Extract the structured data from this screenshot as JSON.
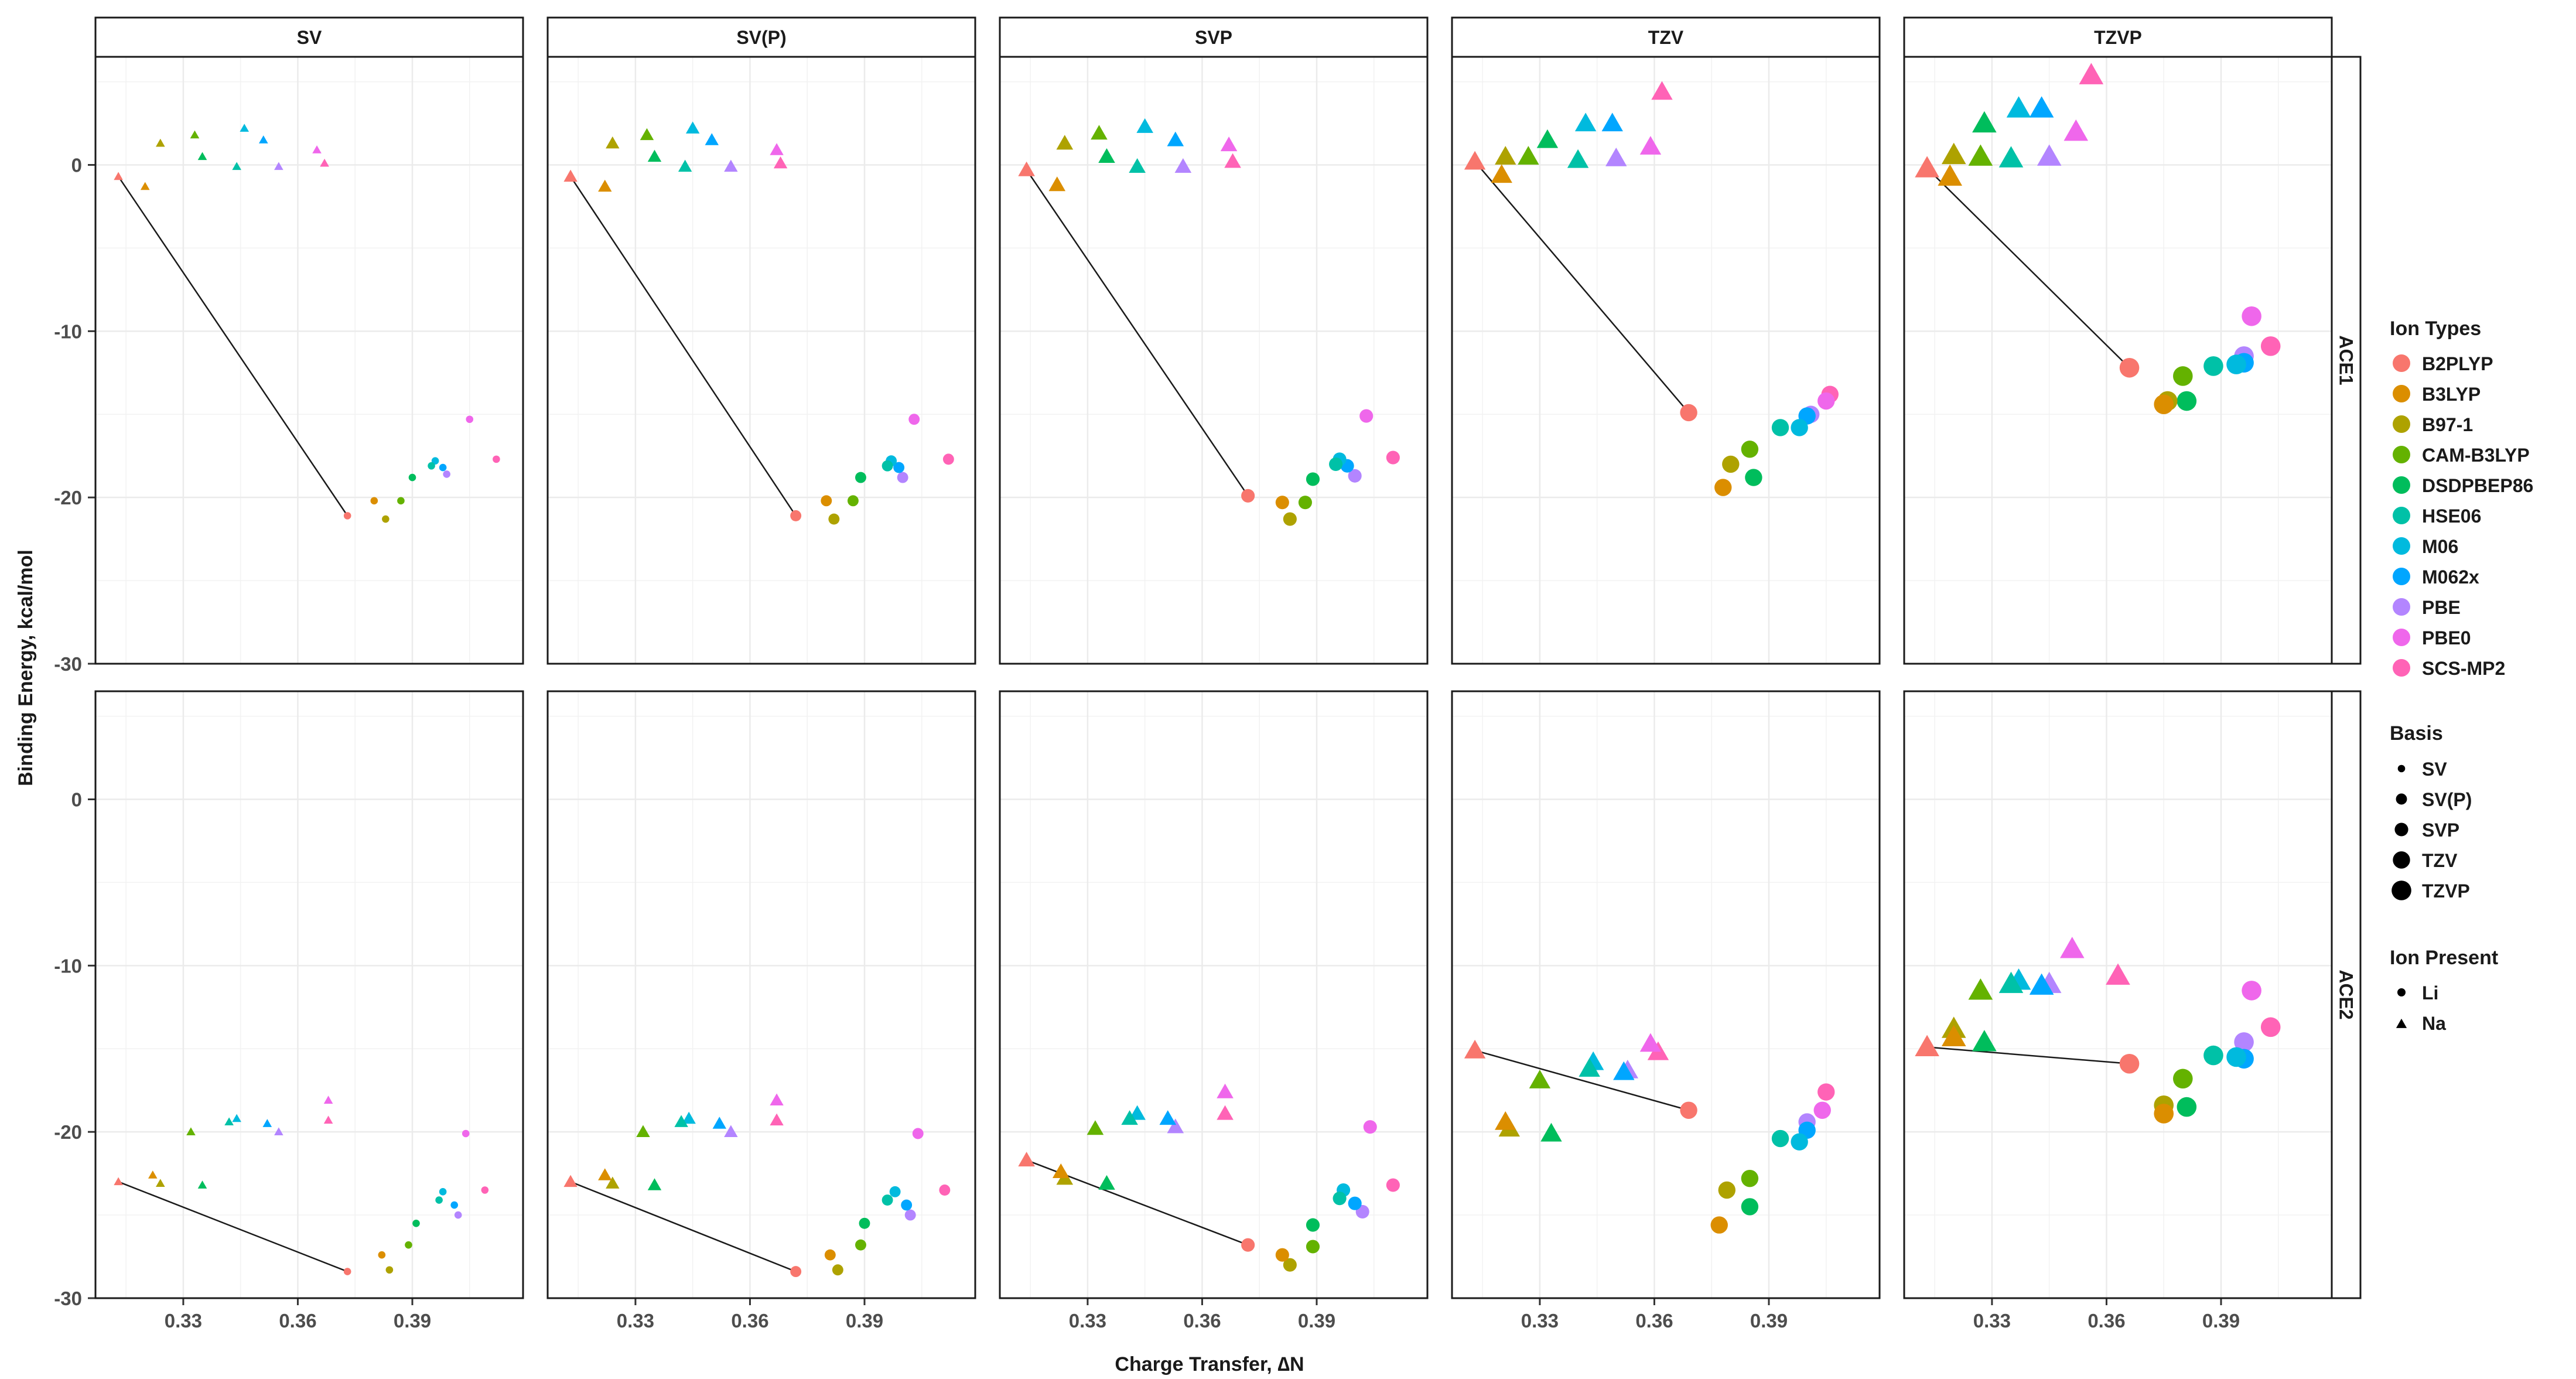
{
  "chart_data": {
    "type": "scatter",
    "title": "",
    "xlabel": "Charge Transfer, ∆N",
    "ylabel": "Binding Energy, kcal/mol",
    "xlim": [
      0.307,
      0.419
    ],
    "ylim": [
      -30,
      6.5
    ],
    "x_ticks": [
      0.33,
      0.36,
      0.39
    ],
    "x_tick_labels": [
      "0.33",
      "0.36",
      "0.39"
    ],
    "y_ticks": [
      -30,
      -20,
      -10,
      0
    ],
    "y_tick_labels": [
      "-30",
      "-20",
      "-10",
      "0"
    ],
    "grid": true,
    "facet_columns": [
      "SV",
      "SV(P)",
      "SVP",
      "TZV",
      "TZVP"
    ],
    "facet_rows": [
      "ACE1",
      "ACE2"
    ],
    "legend_position": "right",
    "legends": {
      "color": {
        "title": "Ion Types",
        "items": [
          "B2PLYP",
          "B3LYP",
          "B97-1",
          "CAM-B3LYP",
          "DSDPBEP86",
          "HSE06",
          "M06",
          "M062x",
          "PBE",
          "PBE0",
          "SCS-MP2"
        ],
        "colors": [
          "#F8766D",
          "#DB8E00",
          "#AEA200",
          "#64B200",
          "#00BD5C",
          "#00C1A7",
          "#00BADE",
          "#00A6FF",
          "#B385FF",
          "#EF67EB",
          "#FF63B6"
        ]
      },
      "size": {
        "title": "Basis",
        "items": [
          "SV",
          "SV(P)",
          "SVP",
          "TZV",
          "TZVP"
        ]
      },
      "shape": {
        "title": "Ion Present",
        "items": [
          "Li",
          "Na"
        ]
      }
    },
    "panels": [
      {
        "col": "SV",
        "row": "ACE1",
        "Li": [
          [
            0.373,
            -21.1
          ],
          [
            0.38,
            -20.2
          ],
          [
            0.383,
            -21.3
          ],
          [
            0.387,
            -20.2
          ],
          [
            0.39,
            -18.8
          ],
          [
            0.395,
            -18.1
          ],
          [
            0.396,
            -17.8
          ],
          [
            0.398,
            -18.2
          ],
          [
            0.399,
            -18.6
          ],
          [
            0.405,
            -15.3
          ],
          [
            0.412,
            -17.7
          ]
        ],
        "Na": [
          [
            0.313,
            -0.7
          ],
          [
            0.32,
            -1.3
          ],
          [
            0.324,
            1.3
          ],
          [
            0.333,
            1.8
          ],
          [
            0.335,
            0.5
          ],
          [
            0.344,
            -0.1
          ],
          [
            0.346,
            2.2
          ],
          [
            0.351,
            1.5
          ],
          [
            0.355,
            -0.1
          ],
          [
            0.365,
            0.9
          ],
          [
            0.367,
            0.1
          ]
        ],
        "line": [
          [
            0.313,
            -0.7
          ],
          [
            0.373,
            -21.1
          ]
        ]
      },
      {
        "col": "SV(P)",
        "row": "ACE1",
        "Li": [
          [
            0.372,
            -21.1
          ],
          [
            0.38,
            -20.2
          ],
          [
            0.382,
            -21.3
          ],
          [
            0.387,
            -20.2
          ],
          [
            0.389,
            -18.8
          ],
          [
            0.396,
            -18.1
          ],
          [
            0.397,
            -17.8
          ],
          [
            0.399,
            -18.2
          ],
          [
            0.4,
            -18.8
          ],
          [
            0.403,
            -15.3
          ],
          [
            0.412,
            -17.7
          ]
        ],
        "Na": [
          [
            0.313,
            -0.7
          ],
          [
            0.322,
            -1.3
          ],
          [
            0.324,
            1.3
          ],
          [
            0.333,
            1.8
          ],
          [
            0.335,
            0.5
          ],
          [
            0.343,
            -0.1
          ],
          [
            0.345,
            2.2
          ],
          [
            0.35,
            1.5
          ],
          [
            0.355,
            -0.1
          ],
          [
            0.367,
            0.9
          ],
          [
            0.368,
            0.1
          ]
        ],
        "line": [
          [
            0.313,
            -0.7
          ],
          [
            0.372,
            -21.1
          ]
        ]
      },
      {
        "col": "SVP",
        "row": "ACE1",
        "Li": [
          [
            0.372,
            -19.9
          ],
          [
            0.381,
            -20.3
          ],
          [
            0.383,
            -21.3
          ],
          [
            0.387,
            -20.3
          ],
          [
            0.389,
            -18.9
          ],
          [
            0.395,
            -18.0
          ],
          [
            0.396,
            -17.7
          ],
          [
            0.398,
            -18.1
          ],
          [
            0.4,
            -18.7
          ],
          [
            0.403,
            -15.1
          ],
          [
            0.41,
            -17.6
          ]
        ],
        "Na": [
          [
            0.314,
            -0.3
          ],
          [
            0.322,
            -1.2
          ],
          [
            0.324,
            1.3
          ],
          [
            0.333,
            1.9
          ],
          [
            0.335,
            0.5
          ],
          [
            0.343,
            -0.1
          ],
          [
            0.345,
            2.3
          ],
          [
            0.353,
            1.5
          ],
          [
            0.355,
            -0.1
          ],
          [
            0.367,
            1.2
          ],
          [
            0.368,
            0.2
          ]
        ],
        "line": [
          [
            0.314,
            -0.3
          ],
          [
            0.372,
            -19.9
          ]
        ]
      },
      {
        "col": "TZV",
        "row": "ACE1",
        "Li": [
          [
            0.369,
            -14.9
          ],
          [
            0.378,
            -19.4
          ],
          [
            0.38,
            -18.0
          ],
          [
            0.385,
            -17.1
          ],
          [
            0.386,
            -18.8
          ],
          [
            0.393,
            -15.8
          ],
          [
            0.398,
            -15.8
          ],
          [
            0.4,
            -15.1
          ],
          [
            0.401,
            -15.0
          ],
          [
            0.405,
            -14.2
          ],
          [
            0.406,
            -13.8
          ]
        ],
        "Na": [
          [
            0.313,
            0.2
          ],
          [
            0.32,
            -0.6
          ],
          [
            0.321,
            0.5
          ],
          [
            0.327,
            0.5
          ],
          [
            0.332,
            1.5
          ],
          [
            0.34,
            0.3
          ],
          [
            0.342,
            2.5
          ],
          [
            0.349,
            2.5
          ],
          [
            0.35,
            0.4
          ],
          [
            0.359,
            1.1
          ],
          [
            0.362,
            4.4
          ]
        ],
        "line": [
          [
            0.313,
            0.2
          ],
          [
            0.369,
            -14.9
          ]
        ]
      },
      {
        "col": "TZVP",
        "row": "ACE1",
        "Li": [
          [
            0.366,
            -12.2
          ],
          [
            0.375,
            -14.4
          ],
          [
            0.376,
            -14.2
          ],
          [
            0.38,
            -12.7
          ],
          [
            0.381,
            -14.2
          ],
          [
            0.388,
            -12.1
          ],
          [
            0.394,
            -12.0
          ],
          [
            0.396,
            -11.9
          ],
          [
            0.396,
            -11.5
          ],
          [
            0.398,
            -9.1
          ],
          [
            0.403,
            -10.9
          ]
        ],
        "Na": [
          [
            0.313,
            -0.2
          ],
          [
            0.319,
            -0.7
          ],
          [
            0.32,
            0.6
          ],
          [
            0.327,
            0.5
          ],
          [
            0.328,
            2.5
          ],
          [
            0.335,
            0.4
          ],
          [
            0.337,
            3.4
          ],
          [
            0.343,
            3.4
          ],
          [
            0.345,
            0.5
          ],
          [
            0.352,
            2.0
          ],
          [
            0.356,
            5.4
          ]
        ],
        "line": [
          [
            0.313,
            -0.2
          ],
          [
            0.366,
            -12.2
          ]
        ]
      },
      {
        "col": "SV",
        "row": "ACE2",
        "Li": [
          [
            0.373,
            -28.4
          ],
          [
            0.382,
            -27.4
          ],
          [
            0.384,
            -28.3
          ],
          [
            0.389,
            -26.8
          ],
          [
            0.391,
            -25.5
          ],
          [
            0.397,
            -24.1
          ],
          [
            0.398,
            -23.6
          ],
          [
            0.401,
            -24.4
          ],
          [
            0.402,
            -25.0
          ],
          [
            0.404,
            -20.1
          ],
          [
            0.409,
            -23.5
          ]
        ],
        "Na": [
          [
            0.313,
            -23.0
          ],
          [
            0.322,
            -22.6
          ],
          [
            0.324,
            -23.1
          ],
          [
            0.332,
            -20.0
          ],
          [
            0.335,
            -23.2
          ],
          [
            0.342,
            -19.4
          ],
          [
            0.344,
            -19.2
          ],
          [
            0.352,
            -19.5
          ],
          [
            0.355,
            -20.0
          ],
          [
            0.368,
            -18.1
          ],
          [
            0.368,
            -19.3
          ]
        ],
        "line": [
          [
            0.313,
            -23.0
          ],
          [
            0.373,
            -28.4
          ]
        ]
      },
      {
        "col": "SV(P)",
        "row": "ACE2",
        "Li": [
          [
            0.372,
            -28.4
          ],
          [
            0.381,
            -27.4
          ],
          [
            0.383,
            -28.3
          ],
          [
            0.389,
            -26.8
          ],
          [
            0.39,
            -25.5
          ],
          [
            0.396,
            -24.1
          ],
          [
            0.398,
            -23.6
          ],
          [
            0.401,
            -24.4
          ],
          [
            0.402,
            -25.0
          ],
          [
            0.404,
            -20.1
          ],
          [
            0.411,
            -23.5
          ]
        ],
        "Na": [
          [
            0.313,
            -23.0
          ],
          [
            0.322,
            -22.6
          ],
          [
            0.324,
            -23.1
          ],
          [
            0.332,
            -20.0
          ],
          [
            0.335,
            -23.2
          ],
          [
            0.342,
            -19.4
          ],
          [
            0.344,
            -19.2
          ],
          [
            0.352,
            -19.5
          ],
          [
            0.355,
            -20.0
          ],
          [
            0.367,
            -18.1
          ],
          [
            0.367,
            -19.3
          ]
        ],
        "line": [
          [
            0.313,
            -23.0
          ],
          [
            0.372,
            -28.4
          ]
        ]
      },
      {
        "col": "SVP",
        "row": "ACE2",
        "Li": [
          [
            0.372,
            -26.8
          ],
          [
            0.381,
            -27.4
          ],
          [
            0.383,
            -28.0
          ],
          [
            0.389,
            -26.9
          ],
          [
            0.389,
            -25.6
          ],
          [
            0.396,
            -24.0
          ],
          [
            0.397,
            -23.5
          ],
          [
            0.4,
            -24.3
          ],
          [
            0.402,
            -24.8
          ],
          [
            0.404,
            -19.7
          ],
          [
            0.41,
            -23.2
          ]
        ],
        "Na": [
          [
            0.314,
            -21.7
          ],
          [
            0.323,
            -22.4
          ],
          [
            0.324,
            -22.8
          ],
          [
            0.332,
            -19.8
          ],
          [
            0.335,
            -23.1
          ],
          [
            0.341,
            -19.2
          ],
          [
            0.343,
            -18.9
          ],
          [
            0.351,
            -19.2
          ],
          [
            0.353,
            -19.7
          ],
          [
            0.366,
            -17.6
          ],
          [
            0.366,
            -18.9
          ]
        ],
        "line": [
          [
            0.314,
            -21.7
          ],
          [
            0.372,
            -26.8
          ]
        ]
      },
      {
        "col": "TZV",
        "row": "ACE2",
        "Li": [
          [
            0.369,
            -18.7
          ],
          [
            0.377,
            -25.6
          ],
          [
            0.379,
            -23.5
          ],
          [
            0.385,
            -22.8
          ],
          [
            0.385,
            -24.5
          ],
          [
            0.393,
            -20.4
          ],
          [
            0.398,
            -20.6
          ],
          [
            0.4,
            -19.9
          ],
          [
            0.4,
            -19.4
          ],
          [
            0.404,
            -18.7
          ],
          [
            0.405,
            -17.6
          ]
        ],
        "Na": [
          [
            0.313,
            -15.1
          ],
          [
            0.321,
            -19.4
          ],
          [
            0.322,
            -19.8
          ],
          [
            0.33,
            -16.9
          ],
          [
            0.333,
            -20.1
          ],
          [
            0.343,
            -16.2
          ],
          [
            0.344,
            -15.8
          ],
          [
            0.352,
            -16.4
          ],
          [
            0.353,
            -16.3
          ],
          [
            0.359,
            -14.7
          ],
          [
            0.361,
            -15.2
          ]
        ],
        "line": [
          [
            0.313,
            -15.1
          ],
          [
            0.369,
            -18.7
          ]
        ]
      },
      {
        "col": "TZVP",
        "row": "ACE2",
        "Li": [
          [
            0.366,
            -15.9
          ],
          [
            0.375,
            -18.9
          ],
          [
            0.375,
            -18.4
          ],
          [
            0.38,
            -16.8
          ],
          [
            0.381,
            -18.5
          ],
          [
            0.388,
            -15.4
          ],
          [
            0.394,
            -15.5
          ],
          [
            0.396,
            -15.6
          ],
          [
            0.396,
            -14.6
          ],
          [
            0.398,
            -11.5
          ],
          [
            0.403,
            -13.7
          ]
        ],
        "Na": [
          [
            0.313,
            -14.9
          ],
          [
            0.32,
            -14.3
          ],
          [
            0.32,
            -13.8
          ],
          [
            0.327,
            -11.5
          ],
          [
            0.328,
            -14.6
          ],
          [
            0.335,
            -11.1
          ],
          [
            0.337,
            -10.9
          ],
          [
            0.343,
            -11.2
          ],
          [
            0.345,
            -11.1
          ],
          [
            0.351,
            -9.0
          ],
          [
            0.363,
            -10.6
          ]
        ],
        "line": [
          [
            0.313,
            -14.9
          ],
          [
            0.366,
            -15.9
          ]
        ]
      }
    ]
  }
}
